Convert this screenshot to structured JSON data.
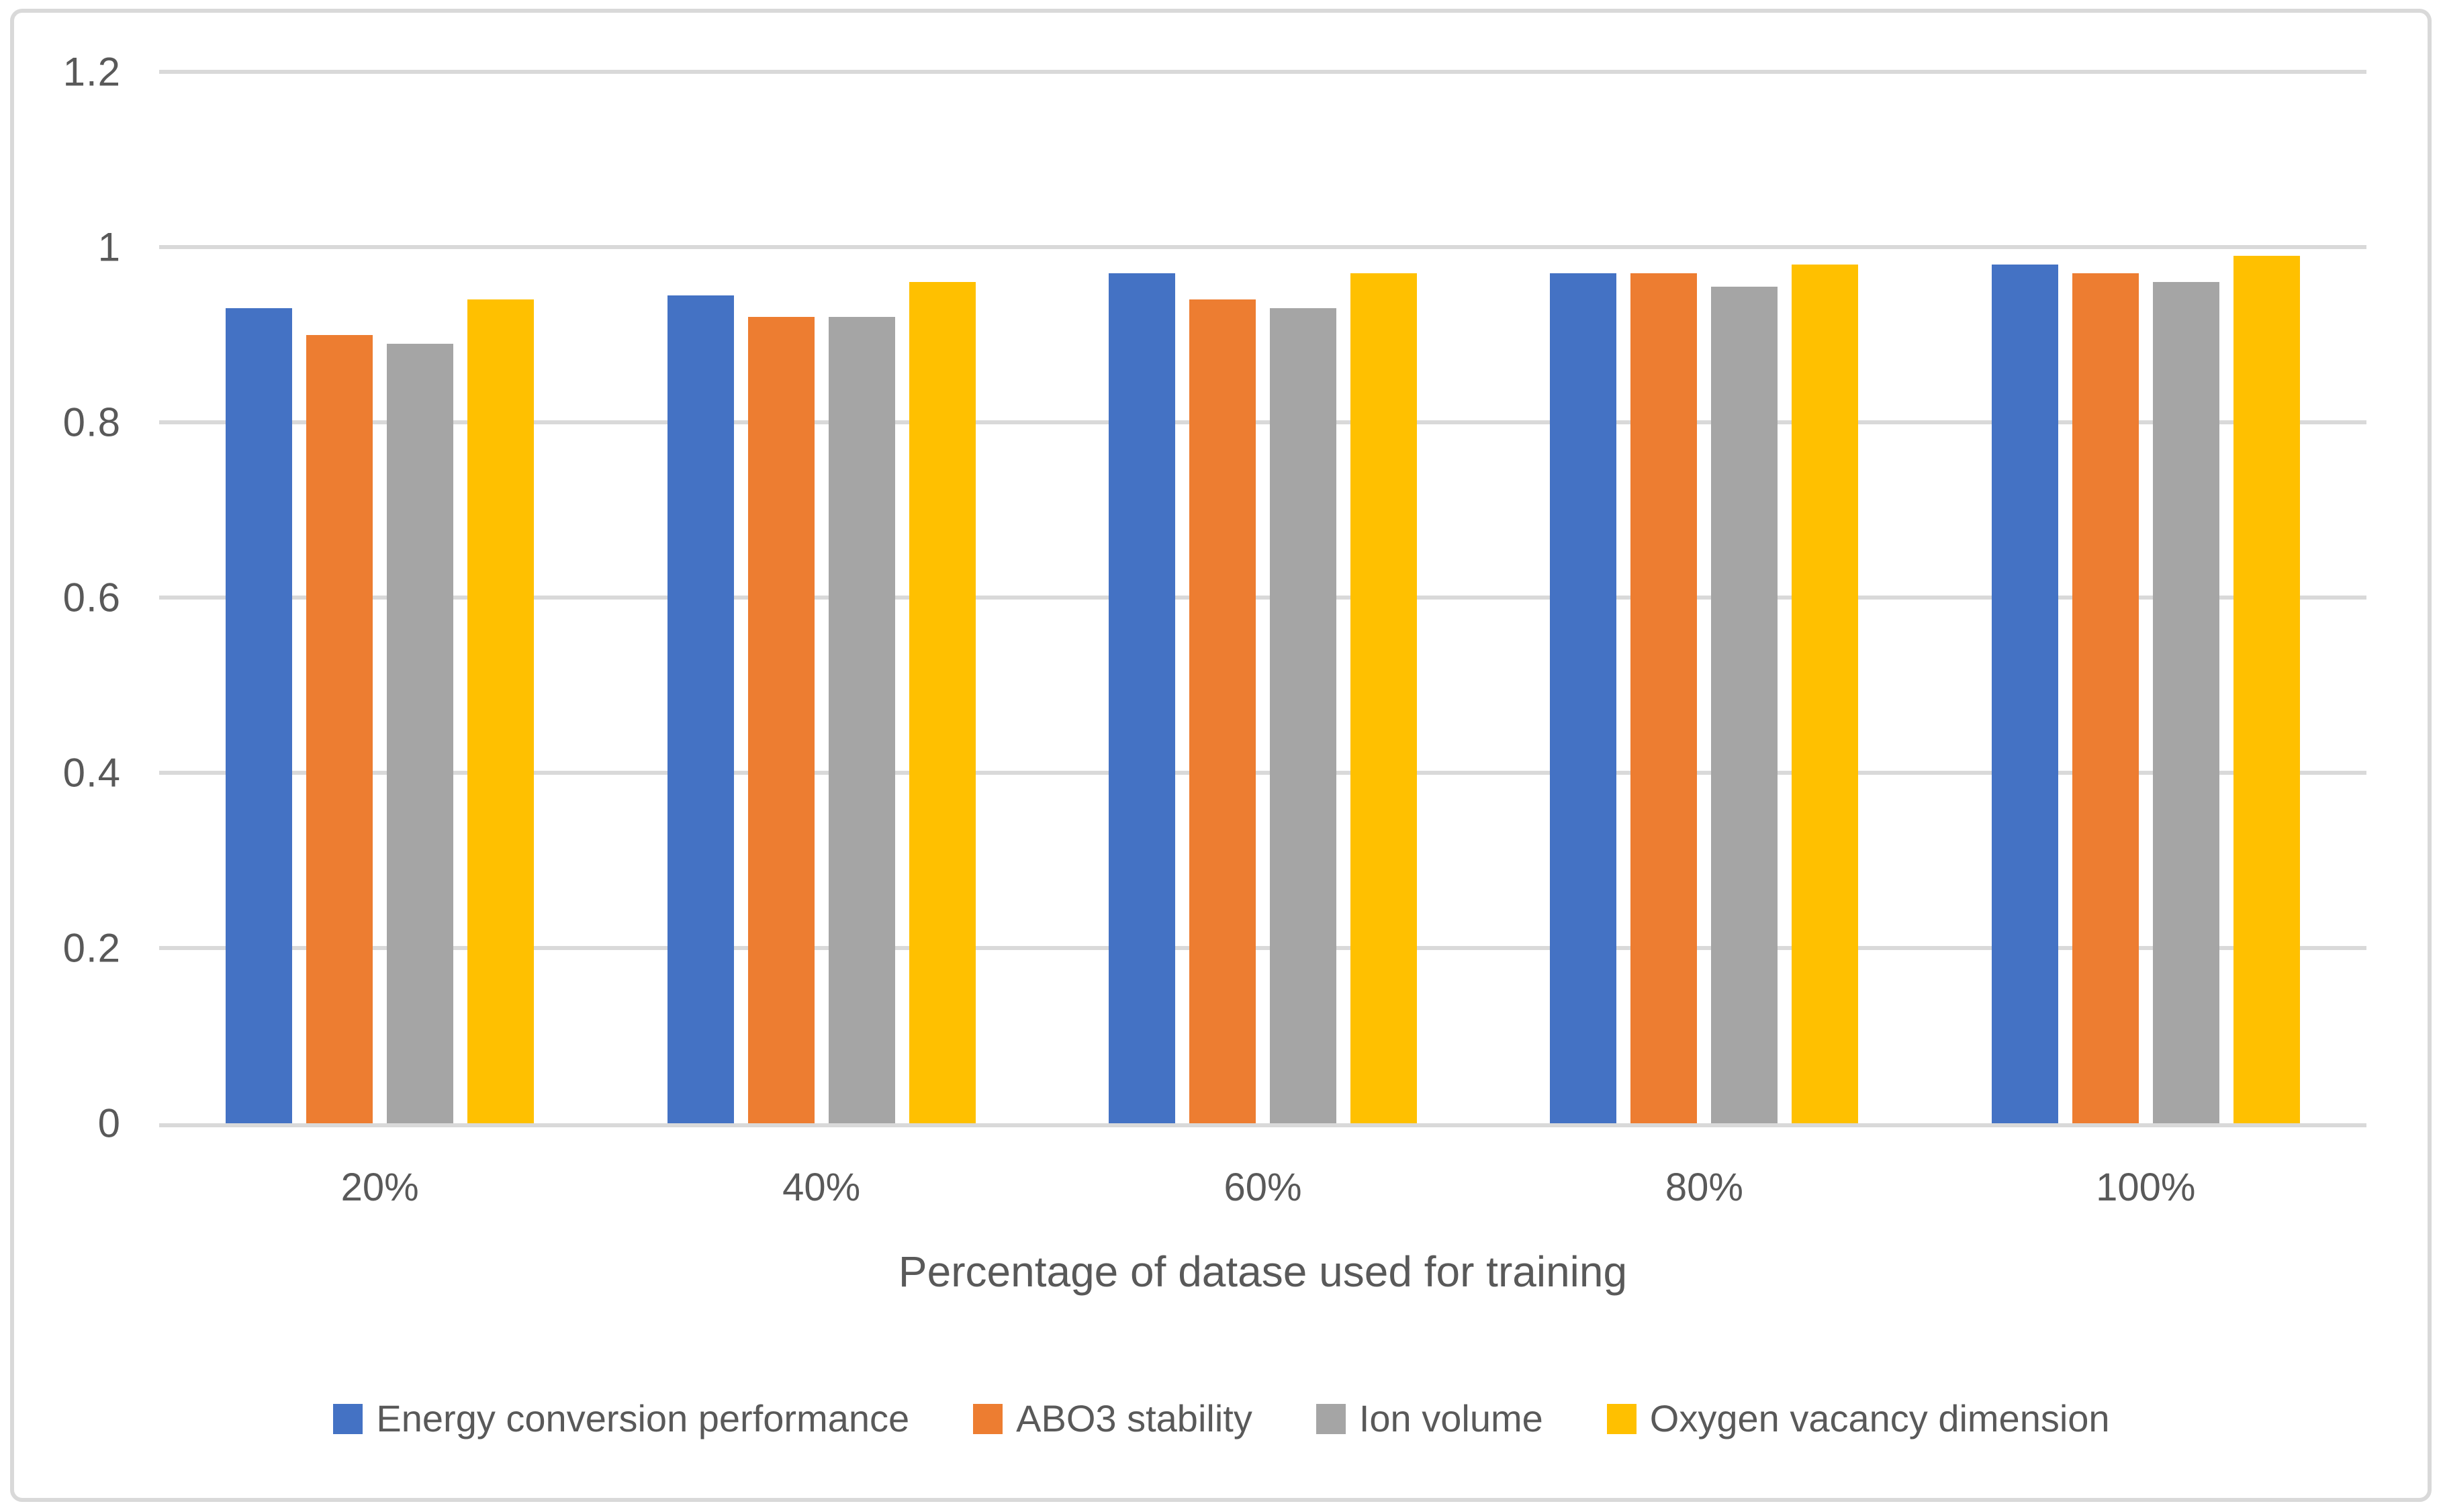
{
  "chart_data": {
    "type": "bar",
    "title": "",
    "xlabel": "Percentage of datase used for training",
    "ylabel": "",
    "categories": [
      "20%",
      "40%",
      "60%",
      "80%",
      "100%"
    ],
    "series": [
      {
        "name": "Energy conversion performance",
        "color": "#4472C4",
        "values": [
          0.93,
          0.945,
          0.97,
          0.97,
          0.98
        ]
      },
      {
        "name": "ABO3 stability",
        "color": "#ED7D31",
        "values": [
          0.9,
          0.92,
          0.94,
          0.97,
          0.97
        ]
      },
      {
        "name": "Ion volume",
        "color": "#A5A5A5",
        "values": [
          0.89,
          0.92,
          0.93,
          0.955,
          0.96
        ]
      },
      {
        "name": "Oxygen vacancy dimension",
        "color": "#FFC000",
        "values": [
          0.94,
          0.96,
          0.97,
          0.98,
          0.99
        ]
      }
    ],
    "ylim": [
      0,
      1.2
    ],
    "yticks": [
      {
        "label": "1.2",
        "value": 1.2
      },
      {
        "label": "1",
        "value": 1.0
      },
      {
        "label": "0.8",
        "value": 0.8
      },
      {
        "label": "0.6",
        "value": 0.6
      },
      {
        "label": "0.4",
        "value": 0.4
      },
      {
        "label": "0.2",
        "value": 0.2
      },
      {
        "label": "0",
        "value": 0.0
      }
    ],
    "grid": true,
    "legend_position": "bottom"
  },
  "colors": {
    "gridline": "#D9D9D9",
    "border": "#D9D9D9",
    "axis_text": "#595959",
    "background": "#FFFFFF"
  }
}
